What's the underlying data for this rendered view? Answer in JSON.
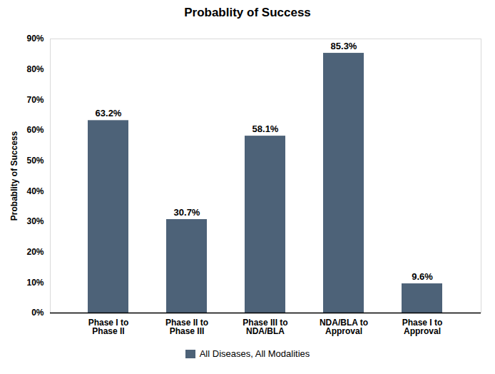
{
  "chart_data": {
    "type": "bar",
    "title": "Probablity of Success",
    "ylabel": "Probablity of Success",
    "categories": [
      "Phase I to\nPhase II",
      "Phase II to\nPhase III",
      "Phase III to\nNDA/BLA",
      "NDA/BLA to\nApproval",
      "Phase I to\nApproval"
    ],
    "series": [
      {
        "name": "All Diseases, All Modalities",
        "color": "#4d6278",
        "values": [
          63.2,
          30.7,
          58.1,
          85.3,
          9.6
        ],
        "value_labels": [
          "63.2%",
          "30.7%",
          "58.1%",
          "85.3%",
          "9.6%"
        ]
      }
    ],
    "ylim": [
      0,
      90
    ],
    "yticks": [
      {
        "value": 0,
        "label": "0%"
      },
      {
        "value": 10,
        "label": "10%"
      },
      {
        "value": 20,
        "label": "20%"
      },
      {
        "value": 30,
        "label": "30%"
      },
      {
        "value": 40,
        "label": "40%"
      },
      {
        "value": 50,
        "label": "50%"
      },
      {
        "value": 60,
        "label": "60%"
      },
      {
        "value": 70,
        "label": "70%"
      },
      {
        "value": 80,
        "label": "80%"
      },
      {
        "value": 90,
        "label": "90%"
      }
    ],
    "grid": false,
    "data_labels": true,
    "legend": "bottom"
  }
}
